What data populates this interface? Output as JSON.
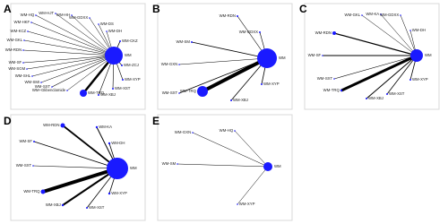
{
  "panels": [
    {
      "label": "A",
      "center": "WM",
      "nodes": [
        "WM-HQ",
        "WM-HJT",
        "WM-HH",
        "WM-GDXX",
        "WM-DS",
        "WM-DH",
        "WM-CKZ",
        "WM-ZCJ",
        "WM-XYP",
        "WM-XST",
        "WM-XBJ",
        "WM-TRQ",
        "WM+Glibenclamide",
        "WM-SXT",
        "WM-SMI",
        "WM-SHL",
        "WM-SGM",
        "WM-SF",
        "WM-RDN",
        "WM-GKL",
        "WM-KCZ",
        "WM-HKF"
      ]
    },
    {
      "label": "B",
      "center": "WM",
      "nodes": [
        "WM-SM",
        "WM-RDN",
        "WM-GDXX",
        "WM-GXN",
        "WM-SXT",
        "WM-TRQ",
        "WM-XBJ",
        "WM-XYP"
      ]
    },
    {
      "label": "C",
      "center": "WM",
      "nodes": [
        "WM-GKL",
        "WM-KA",
        "WM-GDXX",
        "WM-DH",
        "WM-RDN",
        "WM-SF",
        "WM-SXT",
        "WM-TRQ",
        "WM-XBJ",
        "WM-XST",
        "WM-XYP"
      ]
    },
    {
      "label": "D",
      "center": "WM",
      "nodes": [
        "WM-RDN",
        "WM-KA",
        "WM-SF",
        "WM-DH",
        "WM-SXT",
        "WM-TRQ",
        "WM-XYP",
        "WM-XBJ",
        "WM-XST"
      ]
    },
    {
      "label": "E",
      "center": "WM",
      "nodes": [
        "WM-GXN",
        "WM-HQ",
        "WM-SM",
        "WM-XYP"
      ]
    }
  ]
}
